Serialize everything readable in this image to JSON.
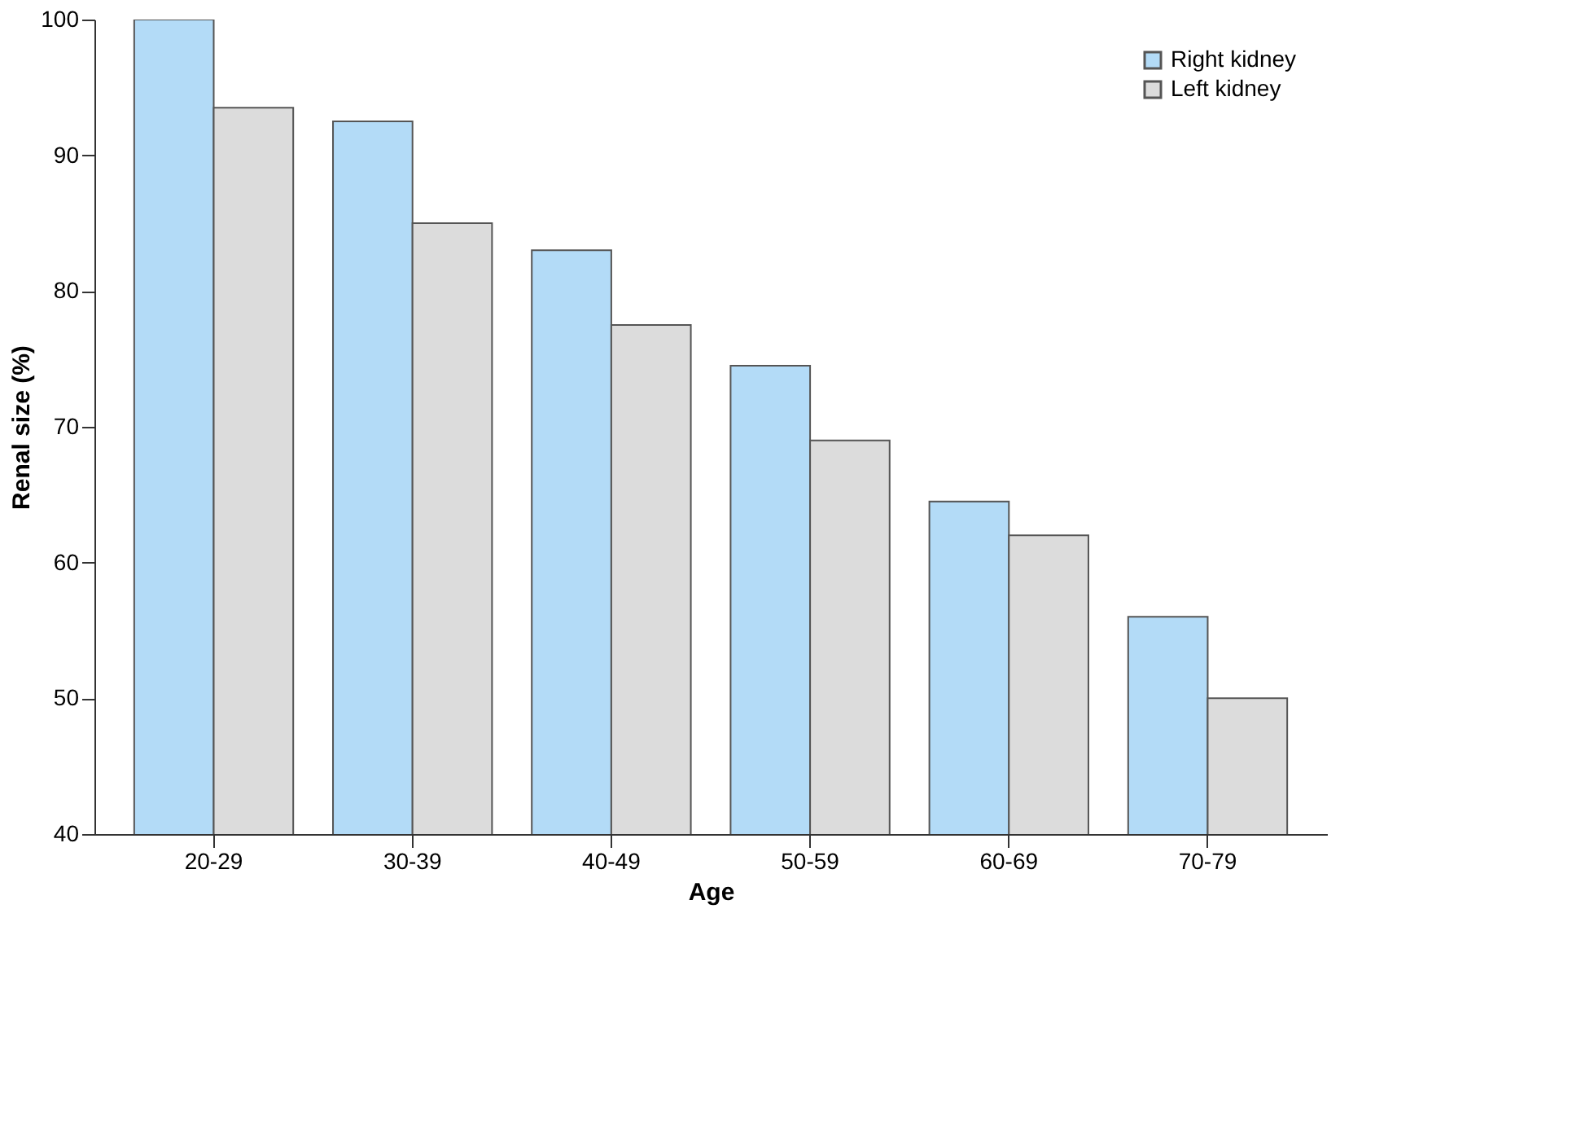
{
  "chart_data": {
    "type": "bar",
    "xlabel": "Age",
    "ylabel": "Renal size (%)",
    "categories": [
      "20-29",
      "30-39",
      "40-49",
      "50-59",
      "60-69",
      "70-79"
    ],
    "series": [
      {
        "name": "Right kidney",
        "color": "#b3dbf7",
        "values": [
          100,
          92.5,
          83,
          74.5,
          64.5,
          56
        ]
      },
      {
        "name": "Left kidney",
        "color": "#dcdcdc",
        "values": [
          93.5,
          85,
          77.5,
          69,
          62,
          50
        ]
      }
    ],
    "ylim": [
      40,
      100
    ],
    "yticks": [
      40,
      50,
      60,
      70,
      80,
      90,
      100
    ],
    "grid": false,
    "legend": "top right"
  }
}
